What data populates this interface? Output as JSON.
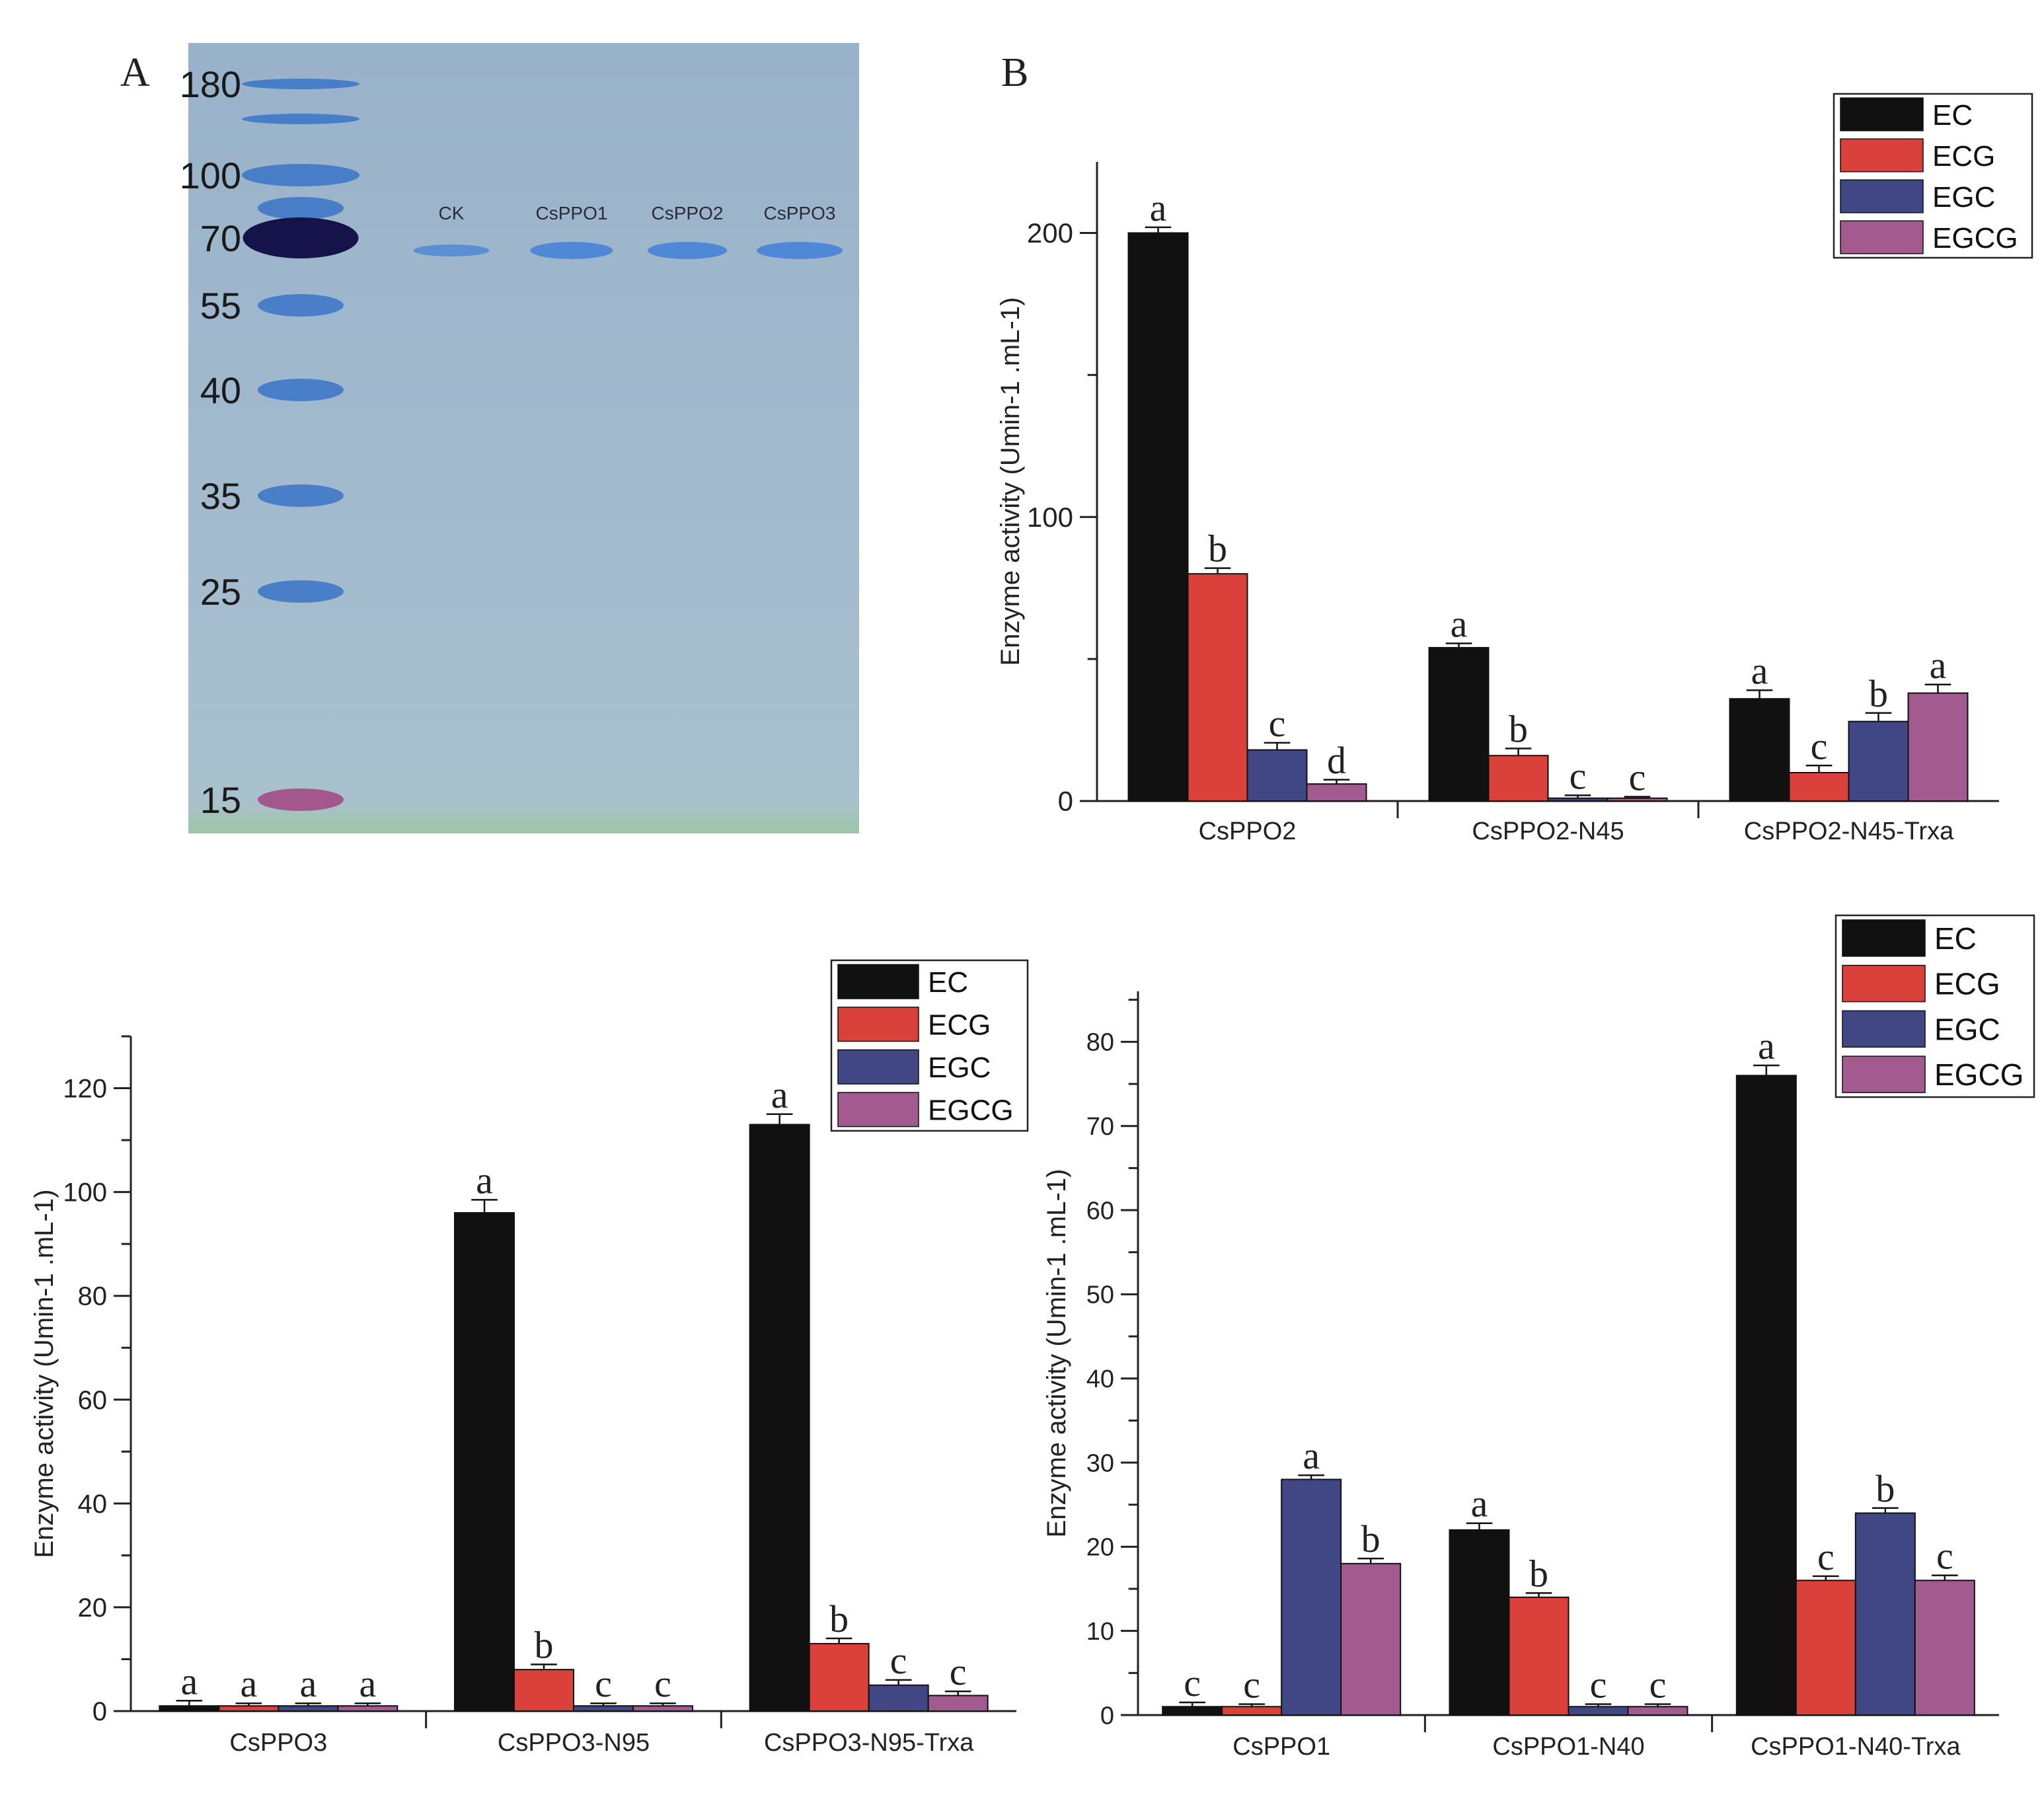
{
  "panels": {
    "a_label": "A",
    "b_label": "B"
  },
  "gel": {
    "ladder_labels": [
      "180",
      "100",
      "70",
      "55",
      "40",
      "35",
      "25",
      "15"
    ],
    "lane_labels": [
      "CK",
      "CsPPO1",
      "CsPPO2",
      "CsPPO3"
    ],
    "colors": {
      "gel_bg": "#9fb7cc",
      "ladder_band": "#3f78c8",
      "dark_band": "#16124a",
      "pink_band": "#a34b86",
      "lane_band": "#4a86d6"
    }
  },
  "colors": {
    "EC": "#111111",
    "ECG": "#d9413a",
    "EGC": "#414784",
    "EGCG": "#a25a8f"
  },
  "chart_data": [
    {
      "id": "B",
      "type": "bar",
      "categories": [
        "CsPPO2",
        "CsPPO2-N45",
        "CsPPO2-N45-Trxa"
      ],
      "series": [
        {
          "name": "EC",
          "values": [
            200,
            54,
            36
          ],
          "errors": [
            2,
            1.5,
            3
          ],
          "letters": [
            "a",
            "a",
            "a"
          ]
        },
        {
          "name": "ECG",
          "values": [
            80,
            16,
            10
          ],
          "errors": [
            2,
            2.5,
            2.5
          ],
          "letters": [
            "b",
            "b",
            "c"
          ]
        },
        {
          "name": "EGC",
          "values": [
            18,
            1,
            28
          ],
          "errors": [
            2.5,
            1,
            3
          ],
          "letters": [
            "c",
            "c",
            "b"
          ]
        },
        {
          "name": "EGCG",
          "values": [
            6,
            1,
            38
          ],
          "errors": [
            1.5,
            0.5,
            3
          ],
          "letters": [
            "d",
            "c",
            "a"
          ]
        }
      ],
      "ylabel": "Enzyme activity (Umin-1 .mL-1)",
      "yticks": [
        0,
        100,
        200
      ],
      "ylim": [
        0,
        225
      ],
      "legend": "top-right"
    },
    {
      "id": "C",
      "type": "bar",
      "categories": [
        "CsPPO3",
        "CsPPO3-N95",
        "CsPPO3-N95-Trxa"
      ],
      "series": [
        {
          "name": "EC",
          "values": [
            1,
            96,
            113
          ],
          "errors": [
            1,
            2.5,
            2
          ],
          "letters": [
            "a",
            "a",
            "a"
          ]
        },
        {
          "name": "ECG",
          "values": [
            1,
            8,
            13
          ],
          "errors": [
            0.5,
            1,
            1
          ],
          "letters": [
            "a",
            "b",
            "b"
          ]
        },
        {
          "name": "EGC",
          "values": [
            1,
            1,
            5
          ],
          "errors": [
            0.5,
            0.5,
            1
          ],
          "letters": [
            "a",
            "c",
            "c"
          ]
        },
        {
          "name": "EGCG",
          "values": [
            1,
            1,
            3
          ],
          "errors": [
            0.5,
            0.5,
            0.8
          ],
          "letters": [
            "a",
            "c",
            "c"
          ]
        }
      ],
      "ylabel": "Enzyme activity (Umin-1 .mL-1)",
      "yticks": [
        0,
        20,
        40,
        60,
        80,
        100,
        120
      ],
      "ylim": [
        0,
        130
      ],
      "legend": "top-right"
    },
    {
      "id": "D",
      "type": "bar",
      "categories": [
        "CsPPO1",
        "CsPPO1-N40",
        "CsPPO1-N40-Trxa"
      ],
      "series": [
        {
          "name": "EC",
          "values": [
            1,
            22,
            76
          ],
          "errors": [
            0.5,
            0.8,
            1.2
          ],
          "letters": [
            "c",
            "a",
            "a"
          ]
        },
        {
          "name": "ECG",
          "values": [
            1,
            14,
            16
          ],
          "errors": [
            0.3,
            0.5,
            0.5
          ],
          "letters": [
            "c",
            "b",
            "c"
          ]
        },
        {
          "name": "EGC",
          "values": [
            28,
            1,
            24
          ],
          "errors": [
            0.5,
            0.3,
            0.6
          ],
          "letters": [
            "a",
            "c",
            "b"
          ]
        },
        {
          "name": "EGCG",
          "values": [
            18,
            1,
            16
          ],
          "errors": [
            0.6,
            0.3,
            0.6
          ],
          "letters": [
            "b",
            "c",
            "c"
          ]
        }
      ],
      "ylabel": "Enzyme activity (Umin-1 .mL-1)",
      "yticks": [
        0,
        10,
        20,
        30,
        40,
        50,
        60,
        70,
        80
      ],
      "ylim": [
        0,
        86
      ],
      "legend": "top-right"
    }
  ]
}
